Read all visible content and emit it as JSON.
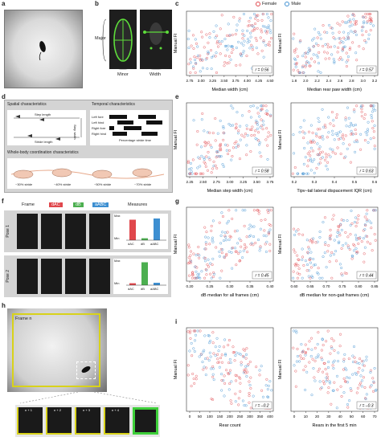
{
  "panels": {
    "a": "a",
    "b": "b",
    "c": "c",
    "d": "d",
    "e": "e",
    "f": "f",
    "g": "g",
    "h": "h",
    "i": "i"
  },
  "legend": {
    "female": "Female",
    "male": "Male",
    "female_color": "#e0474c",
    "male_color": "#3d8fd1"
  },
  "panel_b": {
    "major": "Major",
    "minor": "Minor",
    "width": "Width"
  },
  "panel_d": {
    "spatial_title": "Spatial characteristics",
    "temporal_title": "Temporal characteristics",
    "whole_title": "Whole-body coordination characteristics",
    "step_length": "Step length",
    "stride_length": "Stride length",
    "step_width": "Step width",
    "temporal_rows": [
      "Left fore",
      "Left hind",
      "Right fore",
      "Right hind"
    ],
    "strides": [
      "~30% stride",
      "~40% stride",
      "~50% stride",
      "~70% stride"
    ],
    "temporal_axis": "Percentage stride time"
  },
  "panel_f": {
    "col_frame": "Frame",
    "col_dac": "dAC",
    "col_db": "dB",
    "col_aabc": "aABC",
    "col_measures": "Measures",
    "pose1": "Pose 1",
    "pose2": "Pose 2",
    "max": "Max",
    "min": "Min",
    "bar_labels": [
      "dAC",
      "dB",
      "aABC"
    ],
    "pose1_bars": [
      0.85,
      0.08,
      0.9
    ],
    "pose2_bars": [
      0.08,
      0.95,
      0.1
    ],
    "colors": {
      "dac": "#e0474c",
      "db": "#4caf50",
      "aabc": "#3d8fd1"
    }
  },
  "panel_h": {
    "frame_n": "Frame n",
    "strip": [
      "n + 1",
      "n + 2",
      "n + 3",
      "n + 4"
    ]
  },
  "chart_data": [
    {
      "panel": "c-left",
      "type": "scatter",
      "xlabel": "Median width (cm)",
      "ylabel": "Manual FI",
      "xticks": [
        "2.75",
        "3.00",
        "3.25",
        "3.50",
        "3.75",
        "4.00",
        "4.25",
        "4.50"
      ],
      "annotation": "r = 0.56"
    },
    {
      "panel": "c-right",
      "type": "scatter",
      "xlabel": "Median rear paw width (cm)",
      "ylabel": "Manual FI",
      "xticks": [
        "1.8",
        "2.0",
        "2.2",
        "2.4",
        "2.6",
        "2.8",
        "3.0",
        "3.2"
      ],
      "annotation": "r = 0.57"
    },
    {
      "panel": "e-left",
      "type": "scatter",
      "xlabel": "Median step width (cm)",
      "ylabel": "Manual FI",
      "xticks": [
        "2.25",
        "2.50",
        "2.75",
        "3.00",
        "3.25",
        "3.50",
        "3.75"
      ],
      "annotation": "r = 0.58"
    },
    {
      "panel": "e-right",
      "type": "scatter",
      "xlabel": "Tipv–tail lateral dispacement IQR (cm)",
      "ylabel": "Manual FI",
      "xticks": [
        "0.2",
        "0.3",
        "0.4",
        "0.5",
        "0.6"
      ],
      "annotation": "r = 0.63"
    },
    {
      "panel": "g-left",
      "type": "scatter",
      "xlabel": "dB median for all frames (cm)",
      "ylabel": "Manual FI",
      "xticks": [
        "0.20",
        "0.25",
        "0.30",
        "0.35",
        "0.40"
      ],
      "annotation": "r = 0.45"
    },
    {
      "panel": "g-right",
      "type": "scatter",
      "xlabel": "dB median for non-gait frames (cm)",
      "ylabel": "Manual FI",
      "xticks": [
        "0.60",
        "0.65",
        "0.70",
        "0.75",
        "0.80",
        "0.85"
      ],
      "annotation": "r = 0.44"
    },
    {
      "panel": "i-left",
      "type": "scatter",
      "xlabel": "Rear count",
      "ylabel": "Manual FI",
      "xticks": [
        "0",
        "50",
        "100",
        "150",
        "200",
        "250",
        "300",
        "350",
        "400"
      ],
      "annotation": "r = –0.2"
    },
    {
      "panel": "i-right",
      "type": "scatter",
      "xlabel": "Rears in the first 5 min",
      "ylabel": "Manual FI",
      "xticks": [
        "0",
        "10",
        "20",
        "30",
        "40",
        "50",
        "60",
        "70"
      ],
      "annotation": "r = –0.3"
    }
  ]
}
